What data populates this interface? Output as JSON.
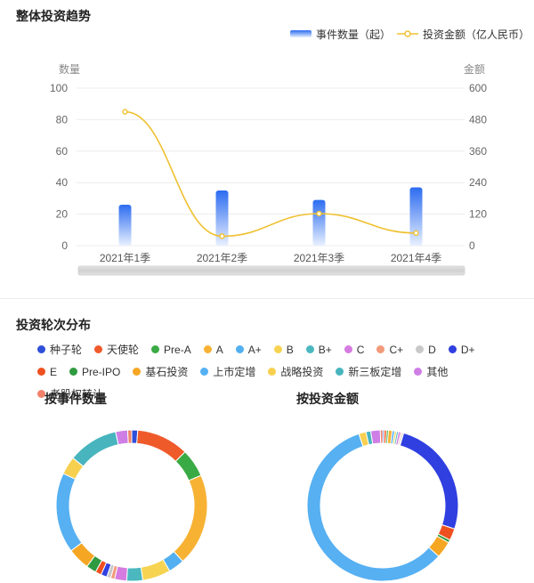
{
  "sections": {
    "trend_title": "整体投资趋势",
    "rounds_title": "投资轮次分布"
  },
  "colors": {
    "bar_top": "#2c6cf0",
    "bar_bottom": "#e8f0ff",
    "line": "#f0c030",
    "grid": "#ececec"
  },
  "chart_data": [
    {
      "type": "bar",
      "title": "整体投资趋势",
      "categories": [
        "2021年1季",
        "2021年2季",
        "2021年3季",
        "2021年4季"
      ],
      "series": [
        {
          "name": "事件数量（起）",
          "type": "bar",
          "axis": "left",
          "values": [
            26,
            35,
            29,
            37
          ]
        },
        {
          "name": "投资金额（亿人民币）",
          "type": "line",
          "axis": "right",
          "values": [
            510,
            36,
            122,
            48
          ]
        }
      ],
      "ylabel": "数量",
      "ylim": [
        0,
        100
      ],
      "yticks": [
        0,
        20,
        40,
        60,
        80,
        100
      ],
      "y2label": "金额",
      "y2lim": [
        0,
        600
      ],
      "y2ticks": [
        0,
        120,
        240,
        360,
        480,
        600
      ],
      "grid": true,
      "legend": "top-right"
    },
    {
      "type": "pie",
      "title": "按事件数量",
      "slices": [
        {
          "label": "种子轮",
          "value": 1.5,
          "color": "#2f4fd8"
        },
        {
          "label": "天使轮",
          "value": 13,
          "color": "#ef5a2b"
        },
        {
          "label": "Pre-A",
          "value": 7,
          "color": "#3aaa45"
        },
        {
          "label": "A",
          "value": 23,
          "color": "#f7b234"
        },
        {
          "label": "A+",
          "value": 4,
          "color": "#52b0f0"
        },
        {
          "label": "B",
          "value": 7,
          "color": "#f6d452"
        },
        {
          "label": "B+",
          "value": 4,
          "color": "#4bb8c0"
        },
        {
          "label": "C",
          "value": 3,
          "color": "#d67be0"
        },
        {
          "label": "C+",
          "value": 1,
          "color": "#f29a7a"
        },
        {
          "label": "D",
          "value": 1,
          "color": "#c8c8c8"
        },
        {
          "label": "D+",
          "value": 1.5,
          "color": "#2f3fe0"
        },
        {
          "label": "E",
          "value": 1.5,
          "color": "#ee5020"
        },
        {
          "label": "Pre-IPO",
          "value": 2.5,
          "color": "#2f9a3f"
        },
        {
          "label": "基石投资",
          "value": 5.5,
          "color": "#f5a623"
        },
        {
          "label": "上市定增",
          "value": 20,
          "color": "#56b0f2"
        },
        {
          "label": "战略投资",
          "value": 4.5,
          "color": "#f8d050"
        },
        {
          "label": "新三板定增",
          "value": 12.5,
          "color": "#47b4be"
        },
        {
          "label": "其他",
          "value": 3,
          "color": "#cf7ee6"
        },
        {
          "label": "老股权转让",
          "value": 1,
          "color": "#f0826a"
        }
      ]
    },
    {
      "type": "pie",
      "title": "按投资金额",
      "slices": [
        {
          "label": "种子轮",
          "value": 0.3,
          "color": "#2f4fd8"
        },
        {
          "label": "天使轮",
          "value": 0.5,
          "color": "#ef5a2b"
        },
        {
          "label": "Pre-A",
          "value": 0.4,
          "color": "#3aaa45"
        },
        {
          "label": "A",
          "value": 0.8,
          "color": "#f7b234"
        },
        {
          "label": "A+",
          "value": 0.5,
          "color": "#52b0f0"
        },
        {
          "label": "B",
          "value": 0.4,
          "color": "#f6d452"
        },
        {
          "label": "B+",
          "value": 0.4,
          "color": "#4bb8c0"
        },
        {
          "label": "C",
          "value": 0.5,
          "color": "#d67be0"
        },
        {
          "label": "C+",
          "value": 0.3,
          "color": "#f29a7a"
        },
        {
          "label": "D",
          "value": 0.3,
          "color": "#c8c8c8"
        },
        {
          "label": "D+",
          "value": 25,
          "color": "#2f3fe0"
        },
        {
          "label": "E",
          "value": 2.5,
          "color": "#ee5020"
        },
        {
          "label": "Pre-IPO",
          "value": 0.6,
          "color": "#2f9a3f"
        },
        {
          "label": "基石投资",
          "value": 3.5,
          "color": "#f5a623"
        },
        {
          "label": "上市定增",
          "value": 57,
          "color": "#56b0f2"
        },
        {
          "label": "战略投资",
          "value": 1.5,
          "color": "#f8d050"
        },
        {
          "label": "新三板定增",
          "value": 1,
          "color": "#47b4be"
        },
        {
          "label": "其他",
          "value": 2,
          "color": "#cf7ee6"
        },
        {
          "label": "老股权转让",
          "value": 0.5,
          "color": "#f0826a"
        }
      ]
    }
  ],
  "legend": [
    {
      "label": "种子轮",
      "color": "#2f4fd8"
    },
    {
      "label": "天使轮",
      "color": "#ef5a2b"
    },
    {
      "label": "Pre-A",
      "color": "#3aaa45"
    },
    {
      "label": "A",
      "color": "#f7b234"
    },
    {
      "label": "A+",
      "color": "#52b0f0"
    },
    {
      "label": "B",
      "color": "#f6d452"
    },
    {
      "label": "B+",
      "color": "#4bb8c0"
    },
    {
      "label": "C",
      "color": "#d67be0"
    },
    {
      "label": "C+",
      "color": "#f29a7a"
    },
    {
      "label": "D",
      "color": "#c8c8c8"
    },
    {
      "label": "D+",
      "color": "#2f3fe0"
    },
    {
      "label": "E",
      "color": "#ee5020"
    },
    {
      "label": "Pre-IPO",
      "color": "#2f9a3f"
    },
    {
      "label": "基石投资",
      "color": "#f5a623"
    },
    {
      "label": "上市定增",
      "color": "#56b0f2"
    },
    {
      "label": "战略投资",
      "color": "#f8d050"
    },
    {
      "label": "新三板定增",
      "color": "#47b4be"
    },
    {
      "label": "其他",
      "color": "#cf7ee6"
    },
    {
      "label": "老股权转让",
      "color": "#f0826a"
    }
  ]
}
